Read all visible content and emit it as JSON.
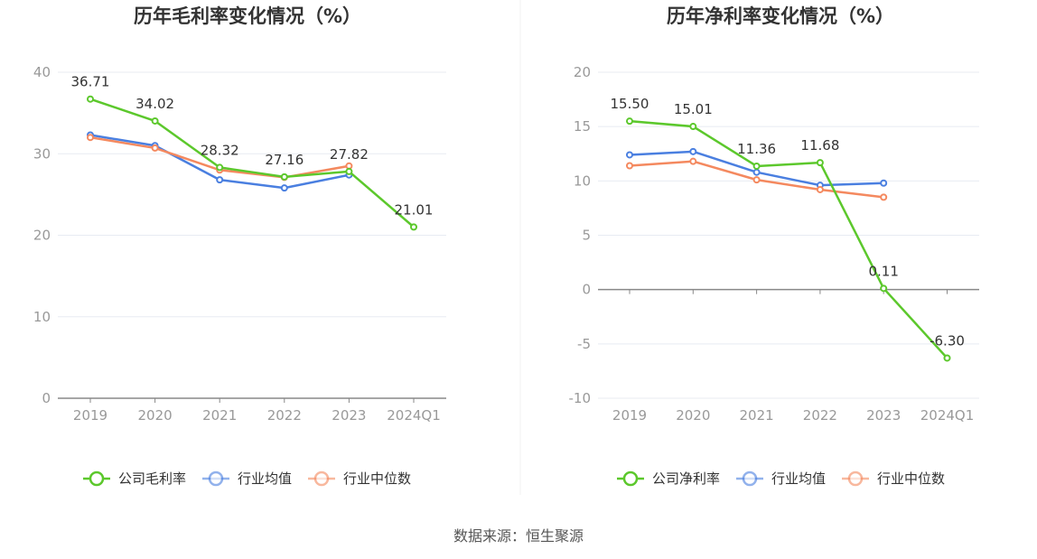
{
  "colors": {
    "company": "#5cc82c",
    "avg": "#4a7fe0",
    "median": "#f4895f",
    "grid": "#e8ebf2",
    "axis": "#888888"
  },
  "chart_data": [
    {
      "type": "line",
      "title": "历年毛利率变化情况（%）",
      "categories": [
        "2019",
        "2020",
        "2021",
        "2022",
        "2023",
        "2024Q1"
      ],
      "ylim": [
        0,
        40
      ],
      "yticks": [
        0,
        10,
        20,
        30,
        40
      ],
      "series": [
        {
          "name": "公司毛利率",
          "values": [
            36.71,
            34.02,
            28.32,
            27.16,
            27.82,
            21.01
          ],
          "labels": [
            "36.71",
            "34.02",
            "28.32",
            "27.16",
            "27.82",
            "21.01"
          ]
        },
        {
          "name": "行业均值",
          "values": [
            32.3,
            31.0,
            26.8,
            25.8,
            27.4,
            null
          ]
        },
        {
          "name": "行业中位数",
          "values": [
            32.0,
            30.7,
            28.0,
            27.1,
            28.5,
            null
          ]
        }
      ]
    },
    {
      "type": "line",
      "title": "历年净利率变化情况（%）",
      "categories": [
        "2019",
        "2020",
        "2021",
        "2022",
        "2023",
        "2024Q1"
      ],
      "ylim": [
        -10,
        20
      ],
      "yticks": [
        -10,
        -5,
        0,
        5,
        10,
        15,
        20
      ],
      "series": [
        {
          "name": "公司净利率",
          "values": [
            15.5,
            15.01,
            11.36,
            11.68,
            0.11,
            -6.3
          ],
          "labels": [
            "15.50",
            "15.01",
            "11.36",
            "11.68",
            "0.11",
            "-6.30"
          ]
        },
        {
          "name": "行业均值",
          "values": [
            12.4,
            12.7,
            10.8,
            9.6,
            9.8,
            null
          ]
        },
        {
          "name": "行业中位数",
          "values": [
            11.4,
            11.8,
            10.1,
            9.2,
            8.5,
            null
          ]
        }
      ]
    }
  ],
  "source": "数据来源：恒生聚源"
}
